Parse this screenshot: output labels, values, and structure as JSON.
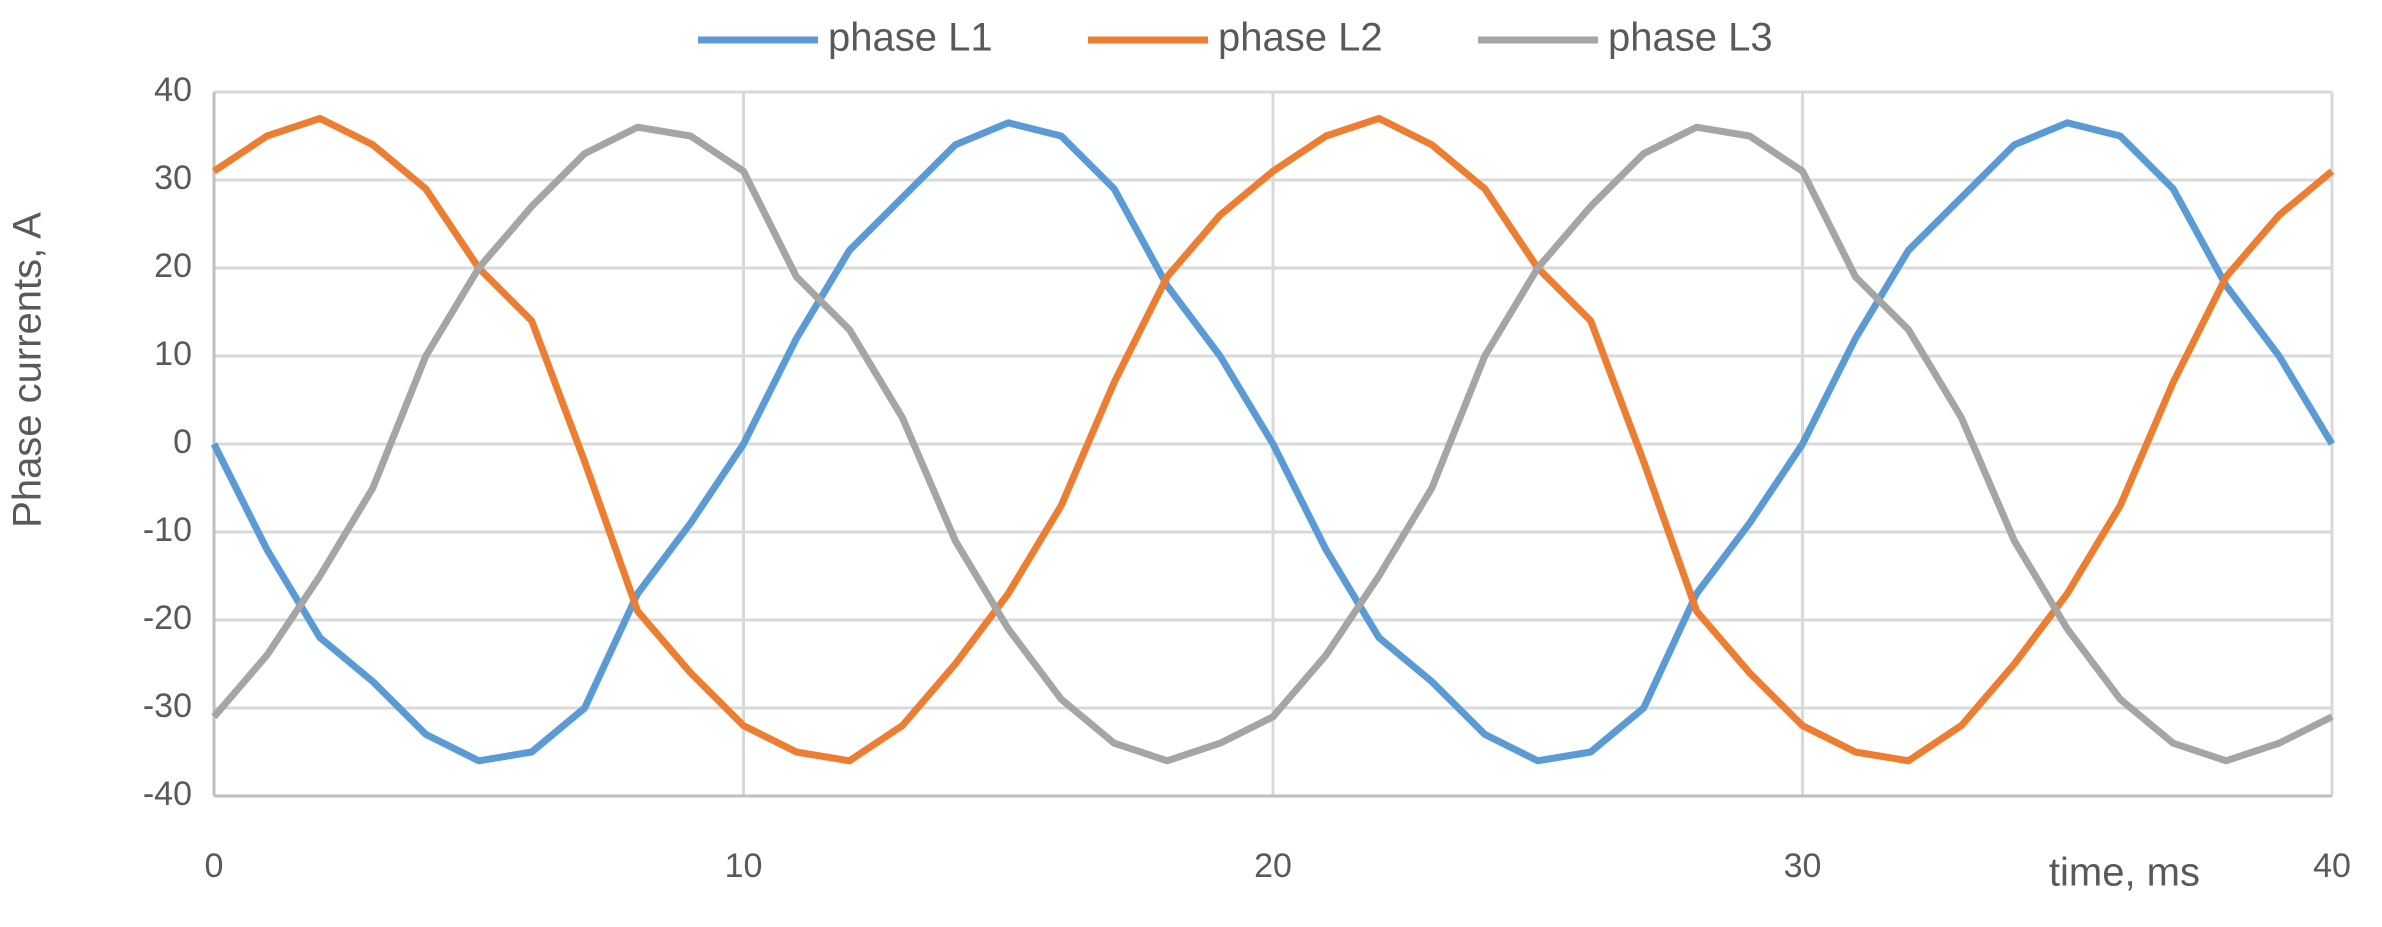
{
  "chart_data": {
    "type": "line",
    "x_label": "time, ms",
    "y_label": "Phase currents, A",
    "x": [
      0,
      1,
      2,
      3,
      4,
      5,
      6,
      7,
      8,
      9,
      10,
      11,
      12,
      13,
      14,
      15,
      16,
      17,
      18,
      19,
      20,
      21,
      22,
      23,
      24,
      25,
      26,
      27,
      28,
      29,
      30,
      31,
      32,
      33,
      34,
      35,
      36,
      37,
      38,
      39,
      40
    ],
    "series": [
      {
        "name": "phase L1",
        "color": "#5b9bd5",
        "values": [
          0,
          -12,
          -22,
          -27,
          -33,
          -36,
          -35,
          -30,
          -17,
          -9,
          0,
          12,
          22,
          28,
          34,
          36.5,
          35,
          29,
          18,
          10,
          0,
          -12,
          -22,
          -27,
          -33,
          -36,
          -35,
          -30,
          -17,
          -9,
          0,
          12,
          22,
          28,
          34,
          36.5,
          35,
          29,
          18,
          10,
          0
        ]
      },
      {
        "name": "phase L2",
        "color": "#ed7d31",
        "values": [
          31,
          35,
          37,
          34,
          29,
          20,
          14,
          -2,
          -19,
          -26,
          -32,
          -35,
          -36,
          -32,
          -25,
          -17,
          -7,
          7,
          19,
          26,
          31,
          35,
          37,
          34,
          29,
          20,
          14,
          -2,
          -19,
          -26,
          -32,
          -35,
          -36,
          -32,
          -25,
          -17,
          -7,
          7,
          19,
          26,
          31
        ]
      },
      {
        "name": "phase L3",
        "color": "#a5a5a5",
        "values": [
          -31,
          -24,
          -15,
          -5,
          10,
          20,
          27,
          33,
          36,
          35,
          31,
          19,
          13,
          3,
          -11,
          -21,
          -29,
          -34,
          -36,
          -34,
          -31,
          -24,
          -15,
          -5,
          10,
          20,
          27,
          33,
          36,
          35,
          31,
          19,
          13,
          3,
          -11,
          -21,
          -29,
          -34,
          -36,
          -34,
          -31
        ]
      }
    ],
    "xlim": [
      0,
      40
    ],
    "xticks": [
      0,
      10,
      20,
      30,
      40
    ],
    "ylim": [
      -40,
      40
    ],
    "yticks": [
      -40,
      -30,
      -20,
      -10,
      0,
      10,
      20,
      30,
      40
    ],
    "grid": true,
    "legend": "top"
  }
}
